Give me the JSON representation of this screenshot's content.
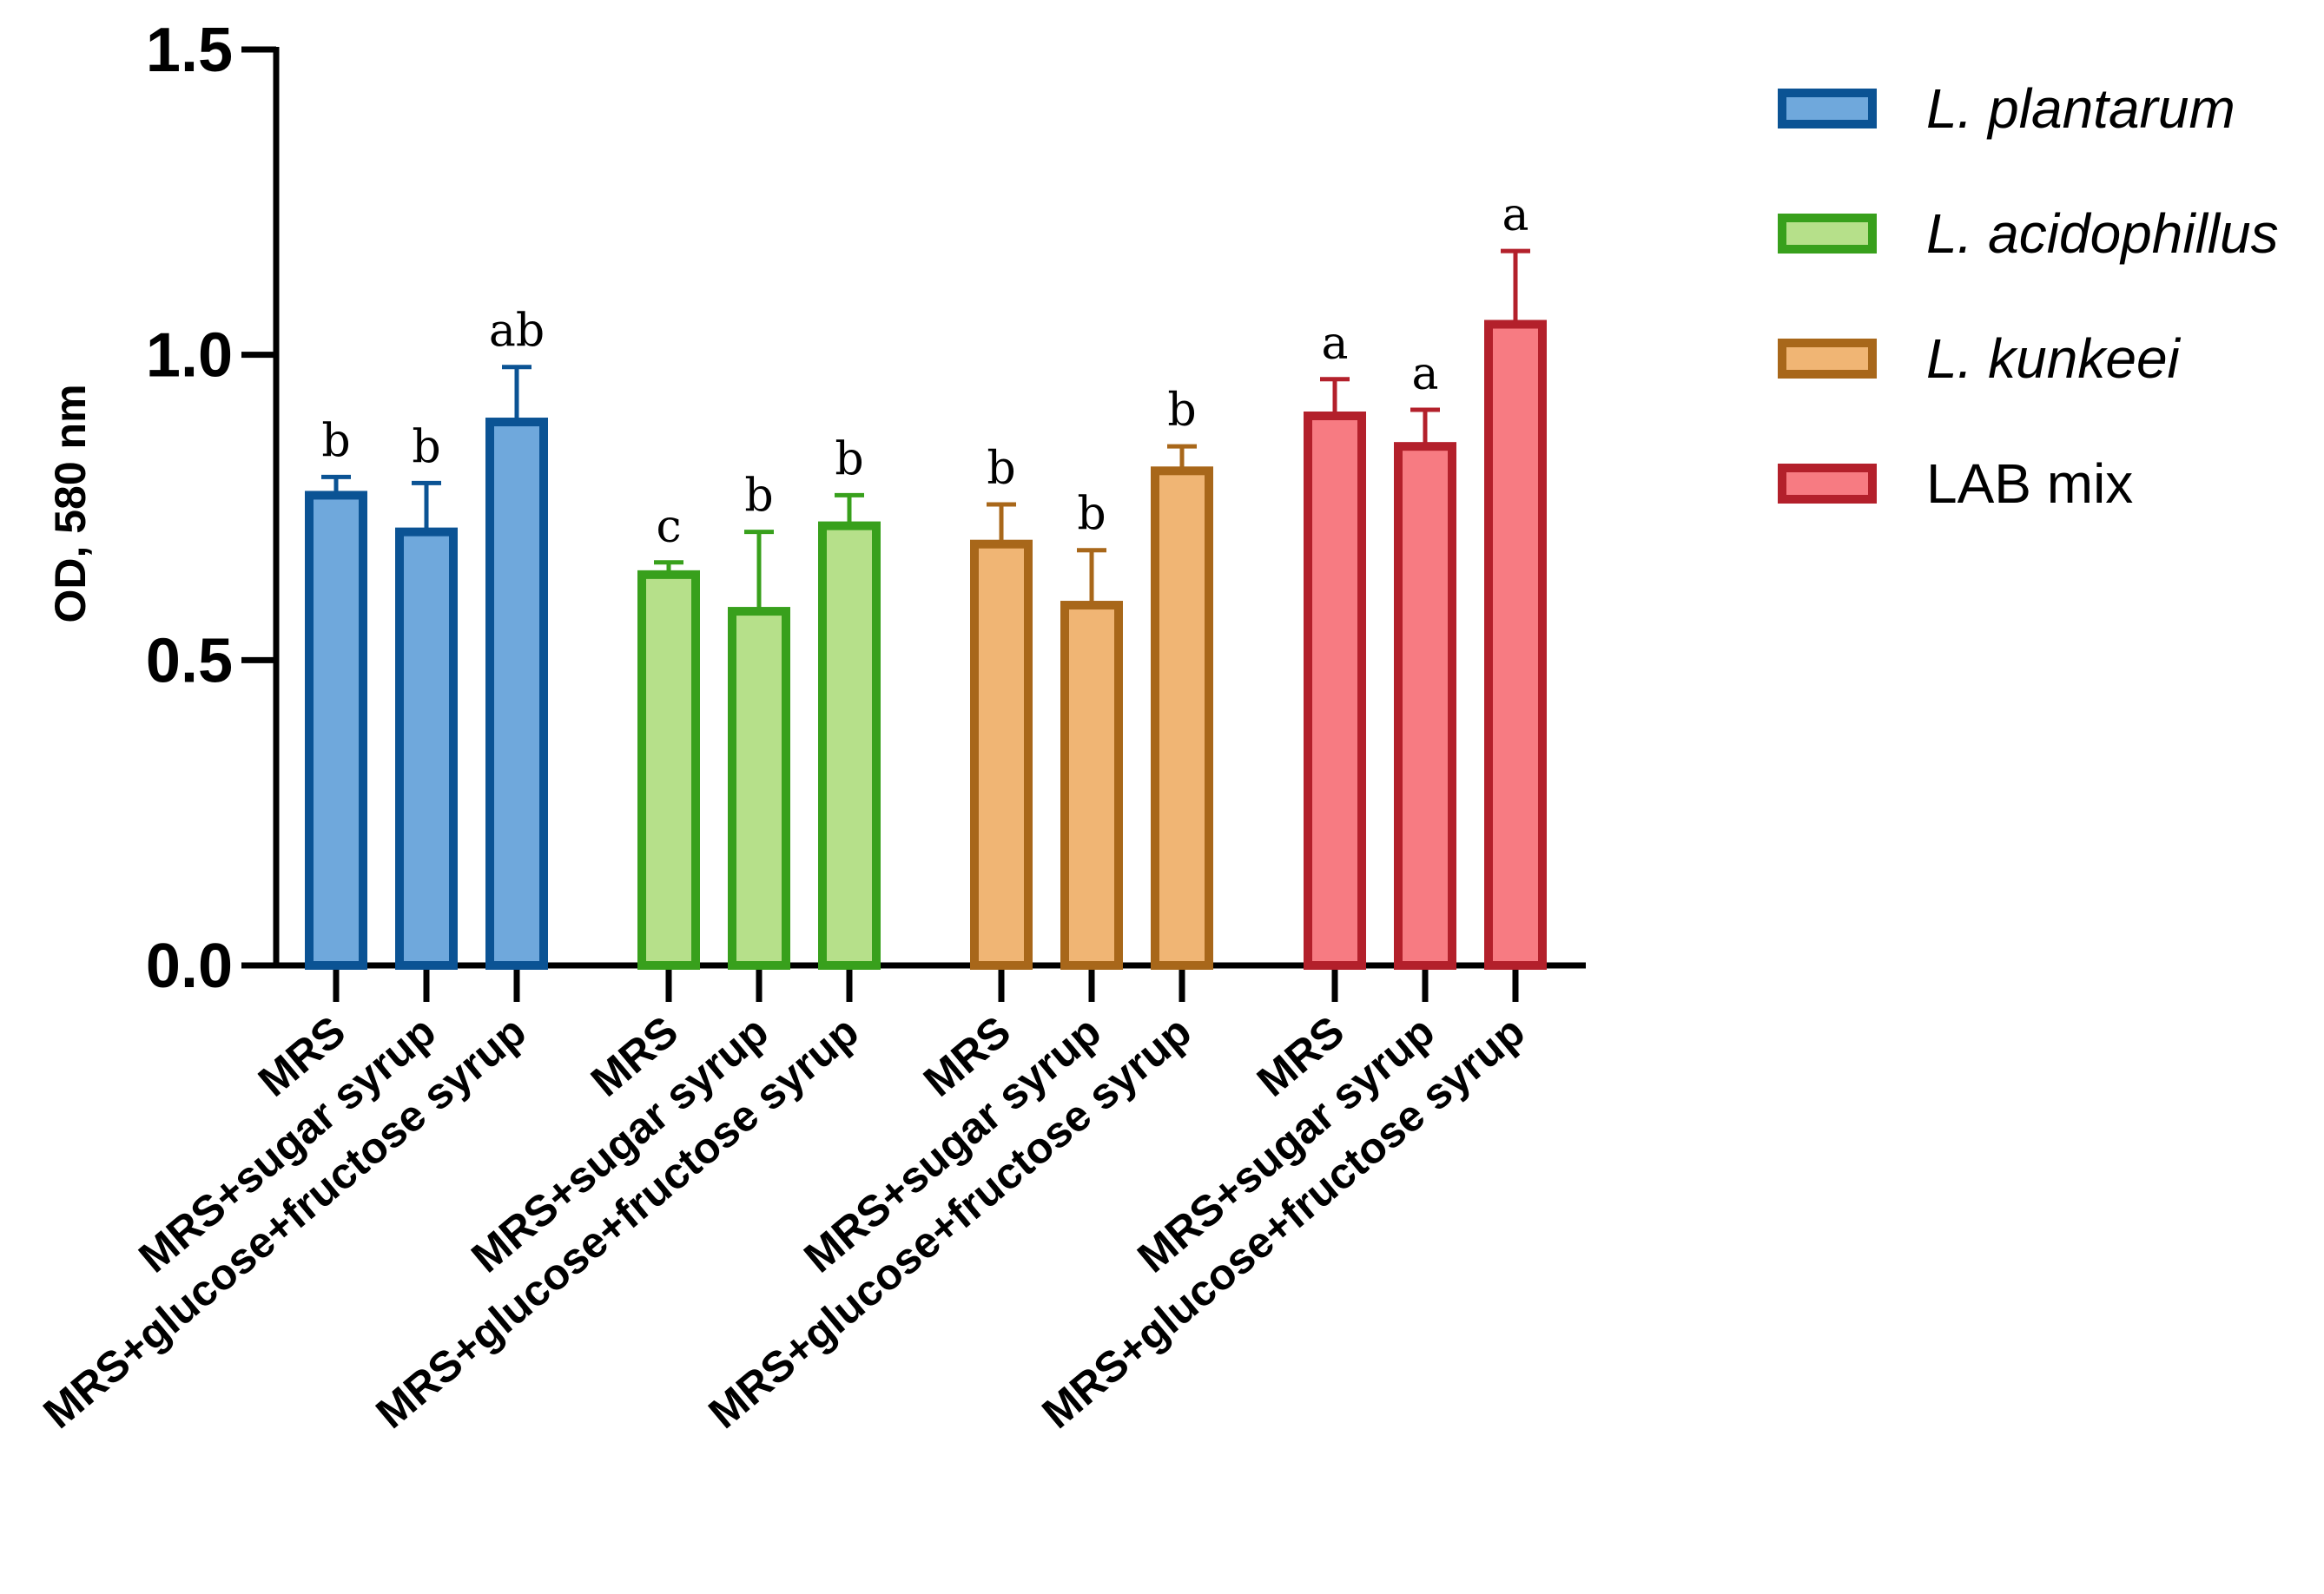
{
  "chart_data": {
    "type": "bar",
    "title": "",
    "xlabel": "",
    "ylabel": "OD, 580 nm",
    "ylim": [
      0,
      1.5
    ],
    "yticks": [
      "0.0",
      "0.5",
      "1.0",
      "1.5"
    ],
    "grid": false,
    "legend_position": "top-right",
    "categories": [
      "MRS",
      "MRS+sugar syrup",
      "MRS+glucose+fructose syrup"
    ],
    "series": [
      {
        "name": "L. plantarum",
        "italic": true,
        "fill": "#6fa8dc",
        "stroke": "#0b5394",
        "values": [
          0.77,
          0.71,
          0.89
        ],
        "errors": [
          0.03,
          0.08,
          0.09
        ],
        "significance": [
          "b",
          "b",
          "ab"
        ]
      },
      {
        "name": "L. acidophillus",
        "italic": true,
        "fill": "#b6e08a",
        "stroke": "#38a01c",
        "values": [
          0.64,
          0.58,
          0.72
        ],
        "errors": [
          0.02,
          0.13,
          0.05
        ],
        "significance": [
          "c",
          "b",
          "b"
        ]
      },
      {
        "name": "L. kunkeei",
        "italic": true,
        "fill": "#f0b574",
        "stroke": "#a8671a",
        "values": [
          0.69,
          0.59,
          0.81
        ],
        "errors": [
          0.065,
          0.09,
          0.04
        ],
        "significance": [
          "b",
          "b",
          "b"
        ]
      },
      {
        "name": "LAB mix",
        "italic": false,
        "fill": "#f77b82",
        "stroke": "#b3202b",
        "values": [
          0.9,
          0.85,
          1.05
        ],
        "errors": [
          0.06,
          0.06,
          0.12
        ],
        "significance": [
          "a",
          "a",
          "a"
        ]
      }
    ]
  }
}
